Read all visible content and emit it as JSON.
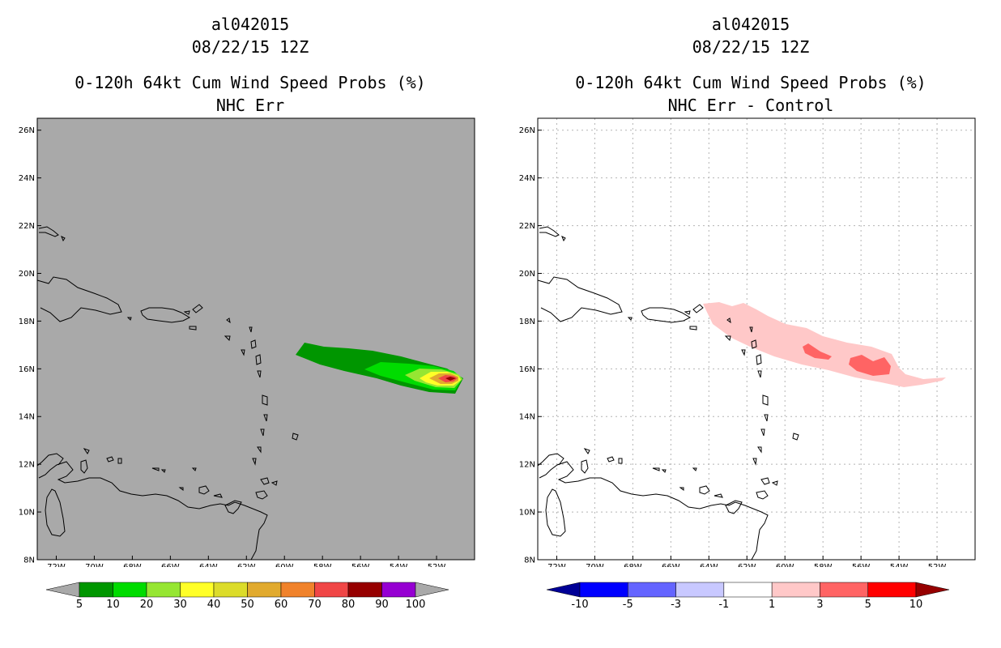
{
  "panels": [
    {
      "storm_id": "al042015",
      "datetime": "08/22/15 12Z",
      "product": "0-120h 64kt Cum Wind Speed Probs (%)",
      "subtitle": "NHC Err",
      "background": "#a9a9a9",
      "colorbar": {
        "labels": [
          "5",
          "10",
          "20",
          "30",
          "40",
          "50",
          "60",
          "70",
          "80",
          "90",
          "100"
        ],
        "colors": [
          "#009600",
          "#00dc00",
          "#96e632",
          "#ffff28",
          "#dcdc2a",
          "#e1aa2e",
          "#f0822b",
          "#f04646",
          "#960000",
          "#9600d2"
        ],
        "end_colors": [
          "#a9a9a9",
          "#a9a9a9"
        ]
      }
    },
    {
      "storm_id": "al042015",
      "datetime": "08/22/15 12Z",
      "product": "0-120h 64kt Cum Wind Speed Probs (%)",
      "subtitle": "NHC Err - Control",
      "background": "#ffffff",
      "colorbar": {
        "labels": [
          "-10",
          "-5",
          "-3",
          "-1",
          "1",
          "3",
          "5",
          "10"
        ],
        "colors": [
          "#0000ff",
          "#6464ff",
          "#c8c8ff",
          "#ffffff",
          "#ffc8c8",
          "#ff6464",
          "#ff0000"
        ],
        "end_colors": [
          "#000096",
          "#960000"
        ]
      }
    }
  ],
  "map": {
    "lon_range": [
      -73,
      -50
    ],
    "lat_range": [
      8,
      26.5
    ],
    "lon_ticks": [
      "72W",
      "70W",
      "68W",
      "66W",
      "64W",
      "62W",
      "60W",
      "58W",
      "56W",
      "54W",
      "52W"
    ],
    "lat_ticks": [
      "8N",
      "10N",
      "12N",
      "14N",
      "16N",
      "18N",
      "20N",
      "22N",
      "24N",
      "26N"
    ]
  }
}
